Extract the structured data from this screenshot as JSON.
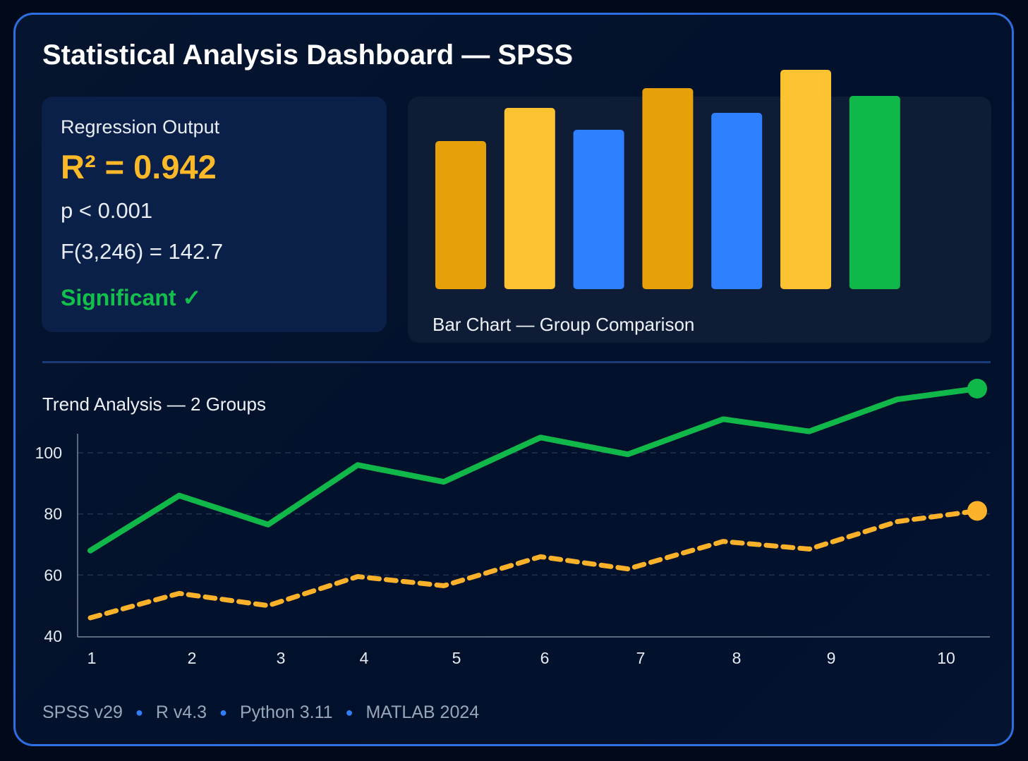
{
  "title": "Statistical Analysis Dashboard — SPSS",
  "regression": {
    "label": "Regression Output",
    "r_squared": "R² = 0.942",
    "p_value": "p < 0.001",
    "f_stat": "F(3,246) = 142.7",
    "status": "Significant ✓",
    "status_color": "#11c14c"
  },
  "chart_data": [
    {
      "type": "bar",
      "title": "Bar Chart — Group Comparison",
      "values": [
        210,
        257,
        226,
        285,
        250,
        311,
        274
      ],
      "colors": [
        "#e6a10a",
        "#fdc232",
        "#2f80ff",
        "#e6a10a",
        "#2f80ff",
        "#fdc232",
        "#10b84a"
      ],
      "axes_shown": false
    },
    {
      "type": "line",
      "title": "Trend Analysis — 2 Groups",
      "x_ticks": [
        "1",
        "2",
        "3",
        "4",
        "5",
        "6",
        "7",
        "8",
        "9",
        "10"
      ],
      "y_ticks": [
        "40",
        "60",
        "80",
        "100"
      ],
      "ylim": [
        40,
        125
      ],
      "grid": "horizontal dashed",
      "series": [
        {
          "color": "#10b84a",
          "style": "solid",
          "values": [
            68,
            86,
            76.5,
            96,
            90.5,
            105,
            99.5,
            111,
            107,
            117.5,
            121
          ]
        },
        {
          "color": "#fbb12a",
          "style": "dashed",
          "values": [
            46,
            54,
            50,
            59.5,
            56.5,
            66,
            62,
            71,
            68.5,
            77.5,
            81
          ]
        }
      ]
    }
  ],
  "footer": [
    "SPSS v29",
    "R v4.3",
    "Python 3.11",
    "MATLAB 2024"
  ]
}
